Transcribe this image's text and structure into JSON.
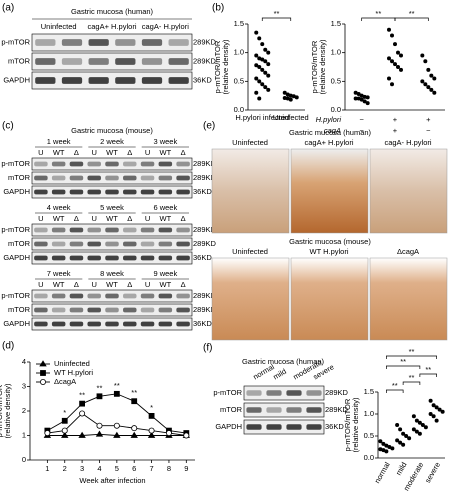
{
  "panel_labels": [
    "(a)",
    "(b)",
    "(c)",
    "(d)",
    "(e)",
    "(f)"
  ],
  "blot_a": {
    "title": "Gastric mucosa (human)",
    "lanes": [
      "Uninfected",
      "cagA+ H.pylori",
      "cagA- H.pylori"
    ],
    "rows": [
      "p-mTOR",
      "mTOR",
      "GAPDH"
    ],
    "markers": [
      "289KD",
      "289KD",
      "36KD"
    ]
  },
  "blot_c": {
    "title": "Gastric mucosa (mouse)",
    "groups": [
      {
        "weeks": [
          "1 week",
          "2 week",
          "3 week"
        ]
      },
      {
        "weeks": [
          "4 week",
          "5 week",
          "6 week"
        ]
      },
      {
        "weeks": [
          "7 week",
          "8 week",
          "9 week"
        ]
      }
    ],
    "lanes": [
      "U",
      "WT",
      "Δ"
    ],
    "rows": [
      "p-mTOR",
      "mTOR",
      "GAPDH"
    ],
    "markers": [
      "289KD",
      "289KD",
      "36KD"
    ]
  },
  "images_e": {
    "human_title": "Gastric mucosa (human)",
    "human": [
      "Uninfected",
      "cagA+ H.pylori",
      "cagA- H.pylori"
    ],
    "mouse_title": "Gastric mucosa (mouse)",
    "mouse": [
      "Uninfected",
      "WT H.pylori",
      "ΔcagA"
    ]
  },
  "blot_f": {
    "title": "Gastric mucosa (human)",
    "lanes": [
      "normal",
      "mild",
      "moderate",
      "severe"
    ],
    "rows": [
      "p-mTOR",
      "mTOR",
      "GAPDH"
    ],
    "markers": [
      "289KD",
      "289KD",
      "36KD"
    ]
  },
  "chart_data": [
    {
      "type": "dot",
      "ylabel": [
        "p-mTOR/mTOR",
        "(relative density)"
      ],
      "categories": [
        "H.pylori infected",
        "Uninfected"
      ],
      "values": [
        [
          1.35,
          1.25,
          1.15,
          1.05,
          1.0,
          0.95,
          0.9,
          0.88,
          0.85,
          0.8,
          0.78,
          0.75,
          0.7,
          0.65,
          0.6,
          0.55,
          0.5,
          0.45,
          0.4,
          0.35,
          0.3,
          0.2
        ],
        [
          0.3,
          0.27,
          0.25,
          0.24,
          0.22,
          0.21,
          0.2,
          0.18
        ]
      ],
      "ylim": [
        0,
        1.5
      ],
      "yticks": [
        {
          "value": 0,
          "label": "0.0"
        },
        {
          "value": 0.5,
          "label": "0.5"
        },
        {
          "value": 1,
          "label": "1.0"
        },
        {
          "value": 1.5,
          "label": "1.5"
        }
      ],
      "significance": [
        "**"
      ]
    },
    {
      "type": "dot",
      "ylabel": [
        "p-mTOR/mTOR",
        "(relative density)"
      ],
      "categories": [
        null,
        null,
        null
      ],
      "rows": [
        {
          "name": "H.pylori",
          "signs": [
            "−",
            "+",
            "+"
          ]
        },
        {
          "name": "cagA",
          "signs": [
            "−",
            "+",
            "−"
          ]
        }
      ],
      "values": [
        [
          0.3,
          0.28,
          0.25,
          0.23,
          0.22,
          0.2,
          0.2,
          0.18,
          0.15,
          0.12
        ],
        [
          1.4,
          1.3,
          1.15,
          1.0,
          0.95,
          0.9,
          0.85,
          0.8,
          0.75,
          0.7,
          0.55,
          0.45
        ],
        [
          0.95,
          0.85,
          0.7,
          0.6,
          0.55,
          0.5,
          0.45,
          0.4,
          0.35,
          0.3
        ]
      ],
      "ylim": [
        0,
        1.5
      ],
      "yticks": [
        {
          "value": 0,
          "label": "0.0"
        },
        {
          "value": 0.5,
          "label": "0.5"
        },
        {
          "value": 1,
          "label": "1.0"
        },
        {
          "value": 1.5,
          "label": "1.5"
        }
      ],
      "significance": [
        "**",
        "**"
      ]
    },
    {
      "type": "line",
      "ylabel": [
        "p-mTOR/mTOR",
        "(relative density)"
      ],
      "xlabel": "Week after infection",
      "x": [
        1,
        2,
        3,
        4,
        5,
        6,
        7,
        8,
        9
      ],
      "xlim": [
        0,
        9.5
      ],
      "xticks": [
        1,
        2,
        3,
        4,
        5,
        6,
        7,
        8,
        9
      ],
      "ylim": [
        0,
        4
      ],
      "yticks": [
        0,
        1,
        2,
        3,
        4
      ],
      "series": [
        {
          "name": "Uninfected",
          "marker": "triangle",
          "color": "#000",
          "values": [
            1.0,
            1.0,
            1.0,
            1.05,
            1.0,
            1.0,
            1.0,
            1.0,
            1.0
          ]
        },
        {
          "name": "WT H.pylori",
          "marker": "square",
          "color": "#000",
          "values": [
            1.2,
            1.6,
            2.3,
            2.6,
            2.7,
            2.4,
            1.8,
            1.2,
            1.1
          ]
        },
        {
          "name": "ΔcagA",
          "marker": "open-circle",
          "color": "#000",
          "values": [
            1.1,
            1.2,
            1.9,
            1.4,
            1.4,
            1.3,
            1.2,
            1.1,
            1.0
          ]
        }
      ],
      "legend": "upper left",
      "annotations": [
        "*",
        "**",
        "**",
        "**",
        "**",
        "*"
      ]
    },
    {
      "type": "dot",
      "ylabel": [
        "p-mTOR/mTOR",
        "(relative density)"
      ],
      "categories": [
        "normal",
        "mild",
        "moderate",
        "severe"
      ],
      "values": [
        [
          0.38,
          0.32,
          0.28,
          0.25,
          0.22,
          0.2,
          0.18,
          0.15
        ],
        [
          0.75,
          0.65,
          0.55,
          0.5,
          0.45,
          0.4,
          0.35,
          0.3
        ],
        [
          0.95,
          0.85,
          0.8,
          0.75,
          0.7,
          0.65,
          0.6,
          0.55
        ],
        [
          1.3,
          1.2,
          1.15,
          1.1,
          1.05,
          1.0,
          0.95,
          0.85
        ]
      ],
      "ylim": [
        0,
        1.5
      ],
      "yticks": [
        {
          "value": 0,
          "label": "0.0"
        },
        {
          "value": 0.5,
          "label": "0.5"
        },
        {
          "value": 1,
          "label": "1.0"
        },
        {
          "value": 1.5,
          "label": "1.5"
        }
      ],
      "significance": [
        "**",
        "**",
        "**",
        "**",
        "**"
      ]
    }
  ]
}
